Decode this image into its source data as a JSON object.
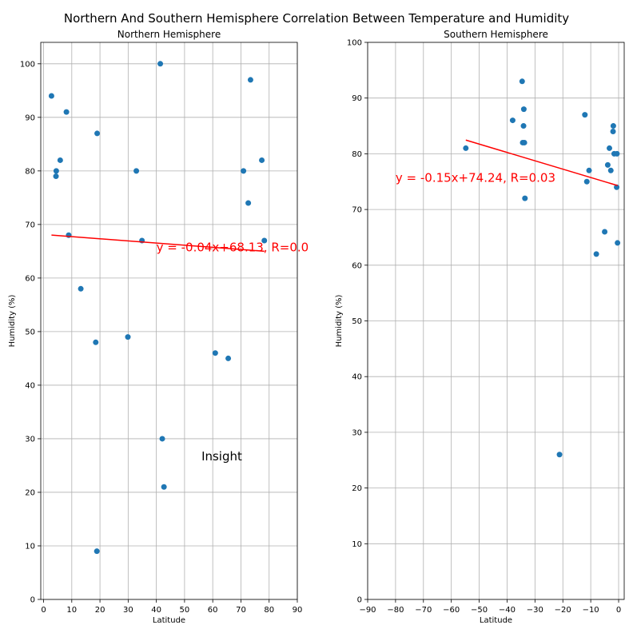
{
  "figure_title": "Northern And Southern Hemisphere Correlation Between Temperature and Humidity",
  "chart_data": [
    {
      "type": "scatter",
      "title": "Northern Hemisphere",
      "xlabel": "Latitude",
      "ylabel": "Humidity (%)",
      "xlim": [
        -1,
        90
      ],
      "ylim": [
        0,
        104
      ],
      "xticks": [
        0,
        10,
        20,
        30,
        40,
        50,
        60,
        70,
        80,
        90
      ],
      "yticks": [
        0,
        10,
        20,
        30,
        40,
        50,
        60,
        70,
        80,
        90,
        100
      ],
      "grid": true,
      "points": [
        {
          "x": 2.8,
          "y": 94
        },
        {
          "x": 8.1,
          "y": 91
        },
        {
          "x": 19.0,
          "y": 87
        },
        {
          "x": 5.9,
          "y": 82
        },
        {
          "x": 4.5,
          "y": 80
        },
        {
          "x": 4.4,
          "y": 79
        },
        {
          "x": 8.9,
          "y": 68
        },
        {
          "x": 13.2,
          "y": 58
        },
        {
          "x": 18.5,
          "y": 48
        },
        {
          "x": 18.9,
          "y": 9
        },
        {
          "x": 29.9,
          "y": 49
        },
        {
          "x": 32.9,
          "y": 80
        },
        {
          "x": 34.9,
          "y": 67
        },
        {
          "x": 41.4,
          "y": 100
        },
        {
          "x": 42.1,
          "y": 30
        },
        {
          "x": 42.7,
          "y": 21
        },
        {
          "x": 60.9,
          "y": 46
        },
        {
          "x": 65.5,
          "y": 45
        },
        {
          "x": 70.9,
          "y": 80
        },
        {
          "x": 72.6,
          "y": 74
        },
        {
          "x": 73.4,
          "y": 97
        },
        {
          "x": 77.4,
          "y": 82
        },
        {
          "x": 78.3,
          "y": 67
        }
      ],
      "regression": {
        "slope": -0.04,
        "intercept": 68.13,
        "x_range": [
          2.8,
          78.3
        ]
      },
      "equation_label": "y = -0.04x+68.13, R=0.0",
      "equation_pos": {
        "x": 40,
        "y": 65
      },
      "annotation": "Insight",
      "annotation_pos": {
        "x": 56,
        "y": 26
      }
    },
    {
      "type": "scatter",
      "title": "Southern Hemisphere",
      "xlabel": "Latitude",
      "ylabel": "Humidity (%)",
      "xlim": [
        -90,
        2
      ],
      "ylim": [
        0,
        100
      ],
      "xticks": [
        -90,
        -80,
        -70,
        -60,
        -50,
        -40,
        -30,
        -20,
        -10,
        0
      ],
      "xtick_labels": [
        "−90",
        "−80",
        "−70",
        "−60",
        "−50",
        "−40",
        "−30",
        "−20",
        "−10",
        "0"
      ],
      "yticks": [
        0,
        10,
        20,
        30,
        40,
        50,
        60,
        70,
        80,
        90,
        100
      ],
      "grid": true,
      "points": [
        {
          "x": -54.8,
          "y": 81
        },
        {
          "x": -38.0,
          "y": 86
        },
        {
          "x": -34.6,
          "y": 93
        },
        {
          "x": -34.0,
          "y": 88
        },
        {
          "x": -34.1,
          "y": 85
        },
        {
          "x": -34.4,
          "y": 82
        },
        {
          "x": -33.8,
          "y": 82
        },
        {
          "x": -33.6,
          "y": 72
        },
        {
          "x": -21.2,
          "y": 26
        },
        {
          "x": -12.1,
          "y": 87
        },
        {
          "x": -11.4,
          "y": 75
        },
        {
          "x": -10.6,
          "y": 77
        },
        {
          "x": -8.0,
          "y": 62
        },
        {
          "x": -5.0,
          "y": 66
        },
        {
          "x": -3.9,
          "y": 78
        },
        {
          "x": -3.3,
          "y": 81
        },
        {
          "x": -2.8,
          "y": 77
        },
        {
          "x": -1.9,
          "y": 85
        },
        {
          "x": -2.0,
          "y": 84
        },
        {
          "x": -1.6,
          "y": 80
        },
        {
          "x": -0.6,
          "y": 80
        },
        {
          "x": -0.7,
          "y": 74
        },
        {
          "x": -0.4,
          "y": 64
        }
      ],
      "regression": {
        "slope": -0.15,
        "intercept": 74.24,
        "x_range": [
          -54.8,
          -0.4
        ]
      },
      "equation_label": "y = -0.15x+74.24, R=0.03",
      "equation_pos": {
        "x": -80,
        "y": 75
      }
    }
  ]
}
